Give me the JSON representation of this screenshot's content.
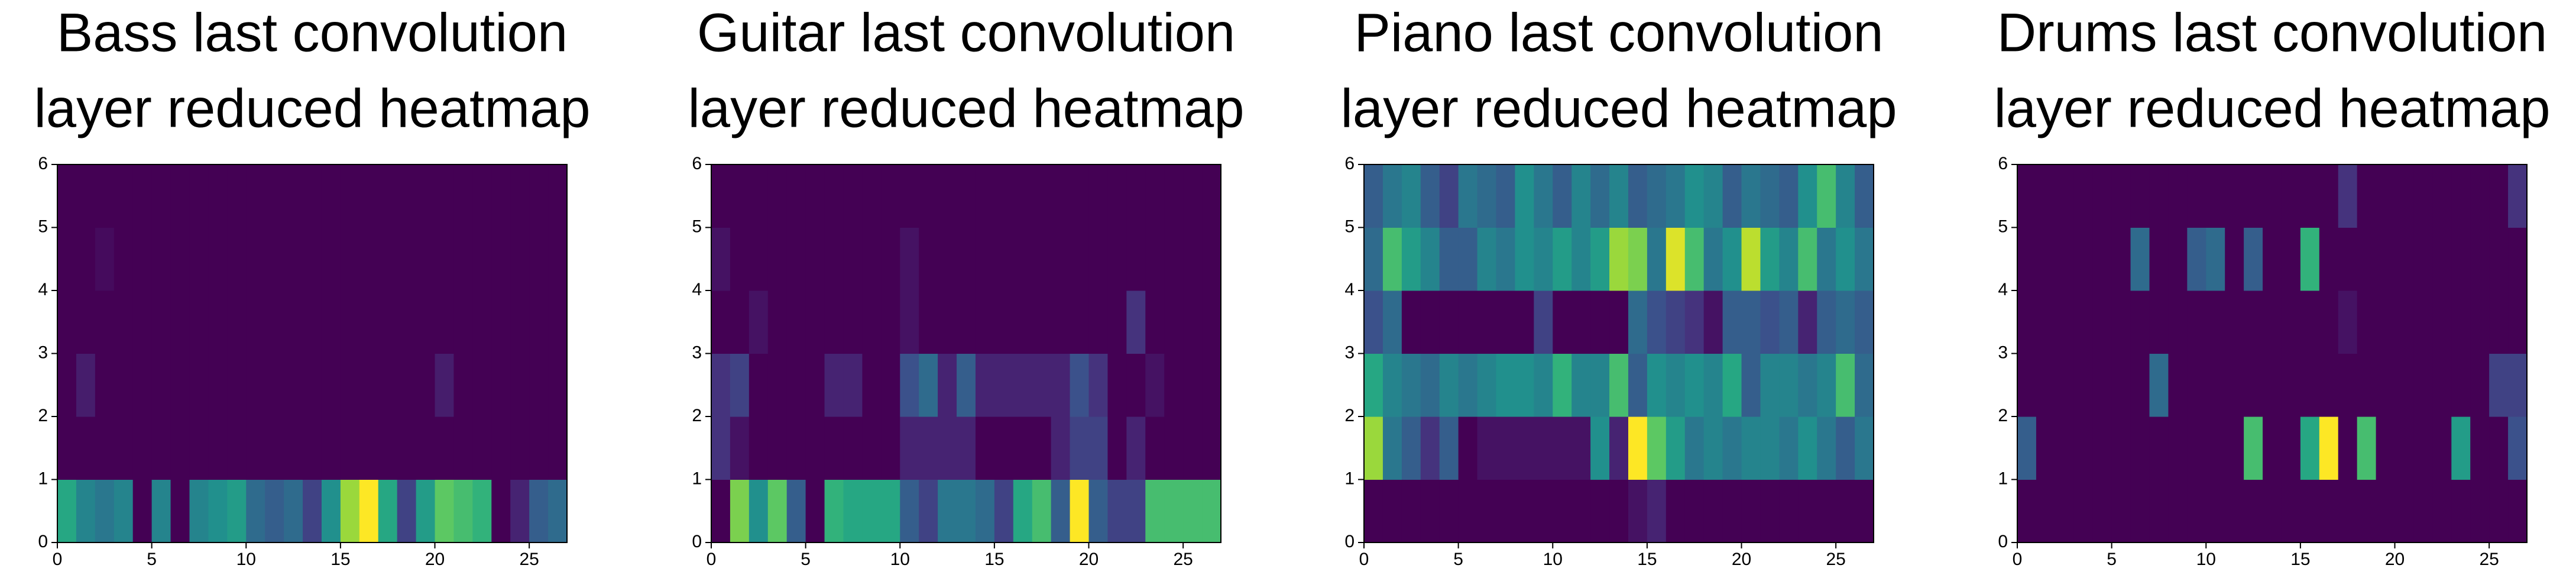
{
  "chart_data": [
    {
      "type": "heatmap",
      "title": [
        "Bass last convolution",
        "layer reduced heatmap"
      ],
      "colormap": "viridis",
      "xlim": [
        0,
        27
      ],
      "ylim": [
        0,
        6
      ],
      "xticks": [
        0,
        5,
        10,
        15,
        20,
        25
      ],
      "yticks": [
        0,
        1,
        2,
        3,
        4,
        5,
        6
      ],
      "values": [
        [
          0.6,
          0.45,
          0.4,
          0.45,
          0,
          0.45,
          0,
          0.45,
          0.5,
          0.55,
          0.35,
          0.3,
          0.35,
          0.2,
          0.5,
          0.85,
          1,
          0.6,
          0.2,
          0.55,
          0.75,
          0.7,
          0.65,
          0,
          0.1,
          0.3,
          0.35
        ],
        [
          0,
          0,
          0,
          0,
          0,
          0,
          0,
          0,
          0,
          0,
          0,
          0,
          0,
          0,
          0,
          0,
          0,
          0,
          0,
          0,
          0,
          0,
          0,
          0,
          0,
          0,
          0
        ],
        [
          0,
          0.08,
          0,
          0,
          0,
          0,
          0,
          0,
          0,
          0,
          0,
          0,
          0,
          0,
          0,
          0,
          0,
          0,
          0,
          0,
          0.08,
          0,
          0,
          0,
          0,
          0,
          0
        ],
        [
          0,
          0,
          0,
          0,
          0,
          0,
          0,
          0,
          0,
          0,
          0,
          0,
          0,
          0,
          0,
          0,
          0,
          0,
          0,
          0,
          0,
          0,
          0,
          0,
          0,
          0,
          0
        ],
        [
          0,
          0,
          0.03,
          0,
          0,
          0,
          0,
          0,
          0,
          0,
          0,
          0,
          0,
          0,
          0,
          0,
          0,
          0,
          0,
          0,
          0,
          0,
          0,
          0,
          0,
          0,
          0
        ],
        [
          0,
          0,
          0,
          0,
          0,
          0,
          0,
          0,
          0,
          0,
          0,
          0,
          0,
          0,
          0,
          0,
          0,
          0,
          0,
          0,
          0,
          0,
          0,
          0,
          0,
          0,
          0
        ]
      ]
    },
    {
      "type": "heatmap",
      "title": [
        "Guitar last convolution",
        "layer reduced heatmap"
      ],
      "colormap": "viridis",
      "xlim": [
        0,
        27
      ],
      "ylim": [
        0,
        6
      ],
      "xticks": [
        0,
        5,
        10,
        15,
        20,
        25
      ],
      "yticks": [
        0,
        1,
        2,
        3,
        4,
        5,
        6
      ],
      "values": [
        [
          0,
          0.8,
          0.5,
          0.75,
          0.3,
          0,
          0.65,
          0.6,
          0.6,
          0.6,
          0.3,
          0.2,
          0.4,
          0.4,
          0.35,
          0.2,
          0.6,
          0.7,
          0.3,
          1,
          0.3,
          0.2,
          0.2,
          0.7,
          0.7,
          0.7,
          0.7
        ],
        [
          0.15,
          0.05,
          0,
          0,
          0,
          0,
          0,
          0,
          0,
          0,
          0.1,
          0.1,
          0.1,
          0.1,
          0,
          0,
          0,
          0,
          0.1,
          0.2,
          0.2,
          0,
          0.1,
          0,
          0,
          0,
          0
        ],
        [
          0.15,
          0.2,
          0,
          0,
          0,
          0,
          0.1,
          0.1,
          0,
          0,
          0.25,
          0.35,
          0.1,
          0.3,
          0.1,
          0.1,
          0.1,
          0.1,
          0.1,
          0.25,
          0.15,
          0,
          0,
          0.05,
          0,
          0,
          0
        ],
        [
          0,
          0,
          0.05,
          0,
          0,
          0,
          0,
          0,
          0,
          0,
          0.05,
          0,
          0,
          0,
          0,
          0,
          0,
          0,
          0,
          0,
          0,
          0,
          0.15,
          0,
          0,
          0,
          0
        ],
        [
          0.05,
          0,
          0,
          0,
          0,
          0,
          0,
          0,
          0,
          0,
          0.05,
          0,
          0,
          0,
          0,
          0,
          0,
          0,
          0,
          0,
          0,
          0,
          0,
          0,
          0,
          0,
          0
        ],
        [
          0,
          0,
          0,
          0,
          0,
          0,
          0,
          0,
          0,
          0,
          0,
          0,
          0,
          0,
          0,
          0,
          0,
          0,
          0,
          0,
          0,
          0,
          0,
          0,
          0,
          0,
          0
        ]
      ]
    },
    {
      "type": "heatmap",
      "title": [
        "Piano last convolution",
        "layer reduced heatmap"
      ],
      "colormap": "viridis",
      "xlim": [
        0,
        27
      ],
      "ylim": [
        0,
        6
      ],
      "xticks": [
        0,
        5,
        10,
        15,
        20,
        25
      ],
      "yticks": [
        0,
        1,
        2,
        3,
        4,
        5,
        6
      ],
      "values": [
        [
          0,
          0,
          0,
          0,
          0,
          0,
          0,
          0,
          0,
          0,
          0,
          0,
          0,
          0,
          0.05,
          0.1,
          0,
          0,
          0,
          0,
          0,
          0,
          0,
          0,
          0,
          0,
          0
        ],
        [
          0.85,
          0.4,
          0.3,
          0.15,
          0.3,
          0,
          0.05,
          0.05,
          0.05,
          0.05,
          0.05,
          0.05,
          0.5,
          0.1,
          1,
          0.75,
          0.55,
          0.4,
          0.45,
          0.4,
          0.45,
          0.45,
          0.4,
          0.5,
          0.4,
          0.3,
          0.4
        ],
        [
          0.6,
          0.45,
          0.4,
          0.35,
          0.45,
          0.4,
          0.45,
          0.5,
          0.5,
          0.45,
          0.65,
          0.45,
          0.45,
          0.7,
          0.3,
          0.5,
          0.45,
          0.5,
          0.45,
          0.6,
          0.3,
          0.45,
          0.45,
          0.4,
          0.45,
          0.7,
          0.35
        ],
        [
          0.25,
          0.35,
          0,
          0,
          0,
          0,
          0,
          0,
          0,
          0.2,
          0,
          0,
          0,
          0,
          0.35,
          0.25,
          0.2,
          0.15,
          0.05,
          0.3,
          0.3,
          0.25,
          0.3,
          0.1,
          0.3,
          0.35,
          0.3
        ],
        [
          0.35,
          0.7,
          0.55,
          0.45,
          0.3,
          0.3,
          0.45,
          0.4,
          0.5,
          0.45,
          0.55,
          0.45,
          0.55,
          0.85,
          0.8,
          0.4,
          0.95,
          0.7,
          0.4,
          0.5,
          0.9,
          0.55,
          0.45,
          0.7,
          0.4,
          0.5,
          0.4
        ],
        [
          0.3,
          0.4,
          0.45,
          0.3,
          0.2,
          0.4,
          0.35,
          0.3,
          0.5,
          0.4,
          0.3,
          0.45,
          0.35,
          0.45,
          0.3,
          0.35,
          0.4,
          0.5,
          0.45,
          0.3,
          0.4,
          0.35,
          0.3,
          0.5,
          0.7,
          0.45,
          0.3
        ]
      ]
    },
    {
      "type": "heatmap",
      "title": [
        "Drums last convolution",
        "layer reduced heatmap"
      ],
      "colormap": "viridis",
      "xlim": [
        0,
        27
      ],
      "ylim": [
        0,
        6
      ],
      "xticks": [
        0,
        5,
        10,
        15,
        20,
        25
      ],
      "yticks": [
        0,
        1,
        2,
        3,
        4,
        5,
        6
      ],
      "values": [
        [
          0,
          0,
          0,
          0,
          0,
          0,
          0,
          0,
          0,
          0,
          0,
          0,
          0,
          0,
          0,
          0,
          0,
          0,
          0,
          0,
          0,
          0,
          0,
          0,
          0,
          0,
          0
        ],
        [
          0.3,
          0,
          0,
          0,
          0,
          0,
          0,
          0,
          0,
          0,
          0,
          0,
          0.7,
          0,
          0,
          0.6,
          1,
          0,
          0.7,
          0,
          0,
          0,
          0,
          0.55,
          0,
          0,
          0.25
        ],
        [
          0,
          0,
          0,
          0,
          0,
          0,
          0,
          0.35,
          0,
          0,
          0,
          0,
          0,
          0,
          0,
          0,
          0,
          0,
          0,
          0,
          0,
          0,
          0,
          0,
          0,
          0.2,
          0.2
        ],
        [
          0,
          0,
          0,
          0,
          0,
          0,
          0,
          0,
          0,
          0,
          0,
          0,
          0,
          0,
          0,
          0,
          0,
          0.05,
          0,
          0,
          0,
          0,
          0,
          0,
          0,
          0,
          0
        ],
        [
          0,
          0,
          0,
          0,
          0,
          0,
          0.35,
          0,
          0,
          0.3,
          0.35,
          0,
          0.3,
          0,
          0,
          0.65,
          0,
          0,
          0,
          0,
          0,
          0,
          0,
          0,
          0,
          0,
          0
        ],
        [
          0,
          0,
          0,
          0,
          0,
          0,
          0,
          0,
          0,
          0,
          0,
          0,
          0,
          0,
          0,
          0,
          0,
          0.15,
          0,
          0,
          0,
          0,
          0,
          0,
          0,
          0,
          0.15
        ]
      ]
    }
  ]
}
